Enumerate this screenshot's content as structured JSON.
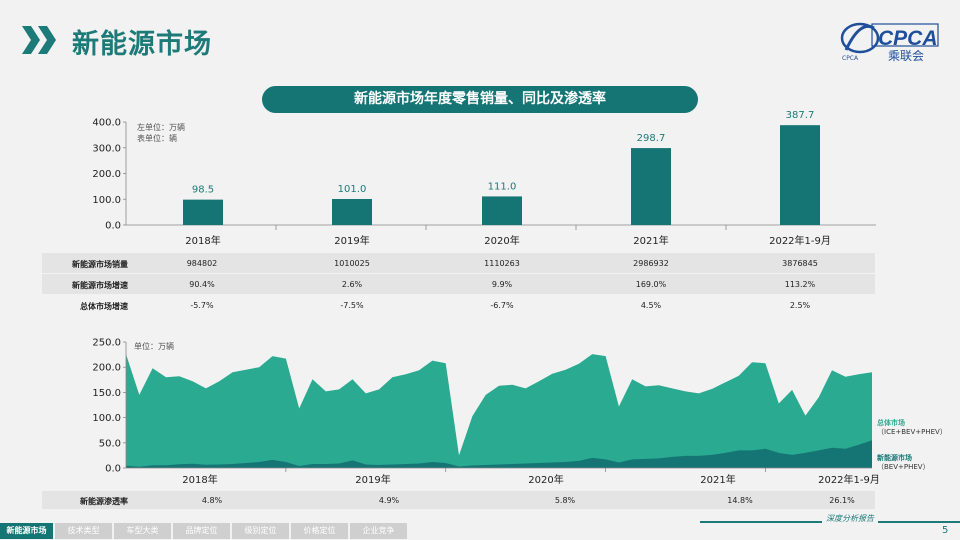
{
  "page": {
    "title": "新能源市场",
    "logo_text": "CPCA",
    "logo_sub": "乘联会",
    "logo_small": "CPCA",
    "footer_text": "深度分析报告",
    "page_number": "5",
    "nav": [
      "新能源市场",
      "技术类型",
      "车型大类",
      "品牌定位",
      "级别定位",
      "价格定位",
      "企业竞争"
    ],
    "active_nav": 0
  },
  "chart_data": [
    {
      "type": "bar",
      "title": "新能源市场年度零售销量、同比及渗透率",
      "unit_lines": [
        "左单位：万辆",
        "表单位：辆"
      ],
      "categories": [
        "2018年",
        "2019年",
        "2020年",
        "2021年",
        "2022年1-9月"
      ],
      "values": [
        98.5,
        101.0,
        111.0,
        298.7,
        387.7
      ],
      "value_labels": [
        "98.5",
        "101.0",
        "111.0",
        "298.7",
        "387.7"
      ],
      "ylim": [
        0,
        400
      ],
      "yticks": [
        "0.0",
        "100.0",
        "200.0",
        "300.0",
        "400.0"
      ],
      "color": "#157575",
      "table": [
        {
          "label": "新能源市场销量",
          "values": [
            "984802",
            "1010025",
            "1110263",
            "2986932",
            "3876845"
          ]
        },
        {
          "label": "新能源市场增速",
          "values": [
            "90.4%",
            "2.6%",
            "9.9%",
            "169.0%",
            "113.2%"
          ]
        },
        {
          "label": "总体市场增速",
          "values": [
            "-5.7%",
            "-7.5%",
            "-6.7%",
            "4.5%",
            "2.5%"
          ]
        }
      ]
    },
    {
      "type": "area",
      "unit_line": "单位：万辆",
      "ylim": [
        0,
        250
      ],
      "yticks": [
        "0.0",
        "50.0",
        "100.0",
        "150.0",
        "200.0",
        "250.0"
      ],
      "x_labels": [
        "2018年",
        "2019年",
        "2020年",
        "2021年",
        "2022年1-9月"
      ],
      "series": [
        {
          "name": "总体市场",
          "sub": "（ICE+BEV+PHEV）",
          "color": "#2aaa90",
          "values": [
            226,
            145,
            198,
            180,
            182,
            172,
            158,
            172,
            190,
            195,
            200,
            222,
            217,
            118,
            176,
            152,
            156,
            176,
            148,
            156,
            180,
            186,
            194,
            213,
            208,
            25,
            103,
            145,
            163,
            165,
            158,
            172,
            187,
            195,
            207,
            226,
            222,
            122,
            176,
            162,
            164,
            158,
            152,
            148,
            157,
            170,
            183,
            210,
            208,
            128,
            155,
            104,
            140,
            194,
            181,
            186,
            190
          ]
        },
        {
          "name": "新能源市场",
          "sub": "（BEV+PHEV）",
          "color": "#157575",
          "values": [
            4.5,
            2.5,
            5.5,
            5.5,
            7.5,
            8.5,
            6.5,
            7,
            8,
            10,
            12,
            16,
            12,
            4,
            8,
            8,
            9,
            15,
            7,
            6,
            7,
            8,
            9,
            12,
            10,
            3,
            5,
            6,
            7,
            8,
            9,
            10,
            11,
            12,
            14,
            20,
            17,
            11,
            17,
            18,
            19,
            22,
            24,
            24,
            26,
            30,
            35,
            35,
            38,
            30,
            26,
            30,
            35,
            40,
            38,
            46,
            55
          ]
        }
      ],
      "penetration_label": "新能源渗透率",
      "penetration": [
        "4.8%",
        "4.9%",
        "5.8%",
        "14.8%",
        "26.1%"
      ]
    }
  ]
}
